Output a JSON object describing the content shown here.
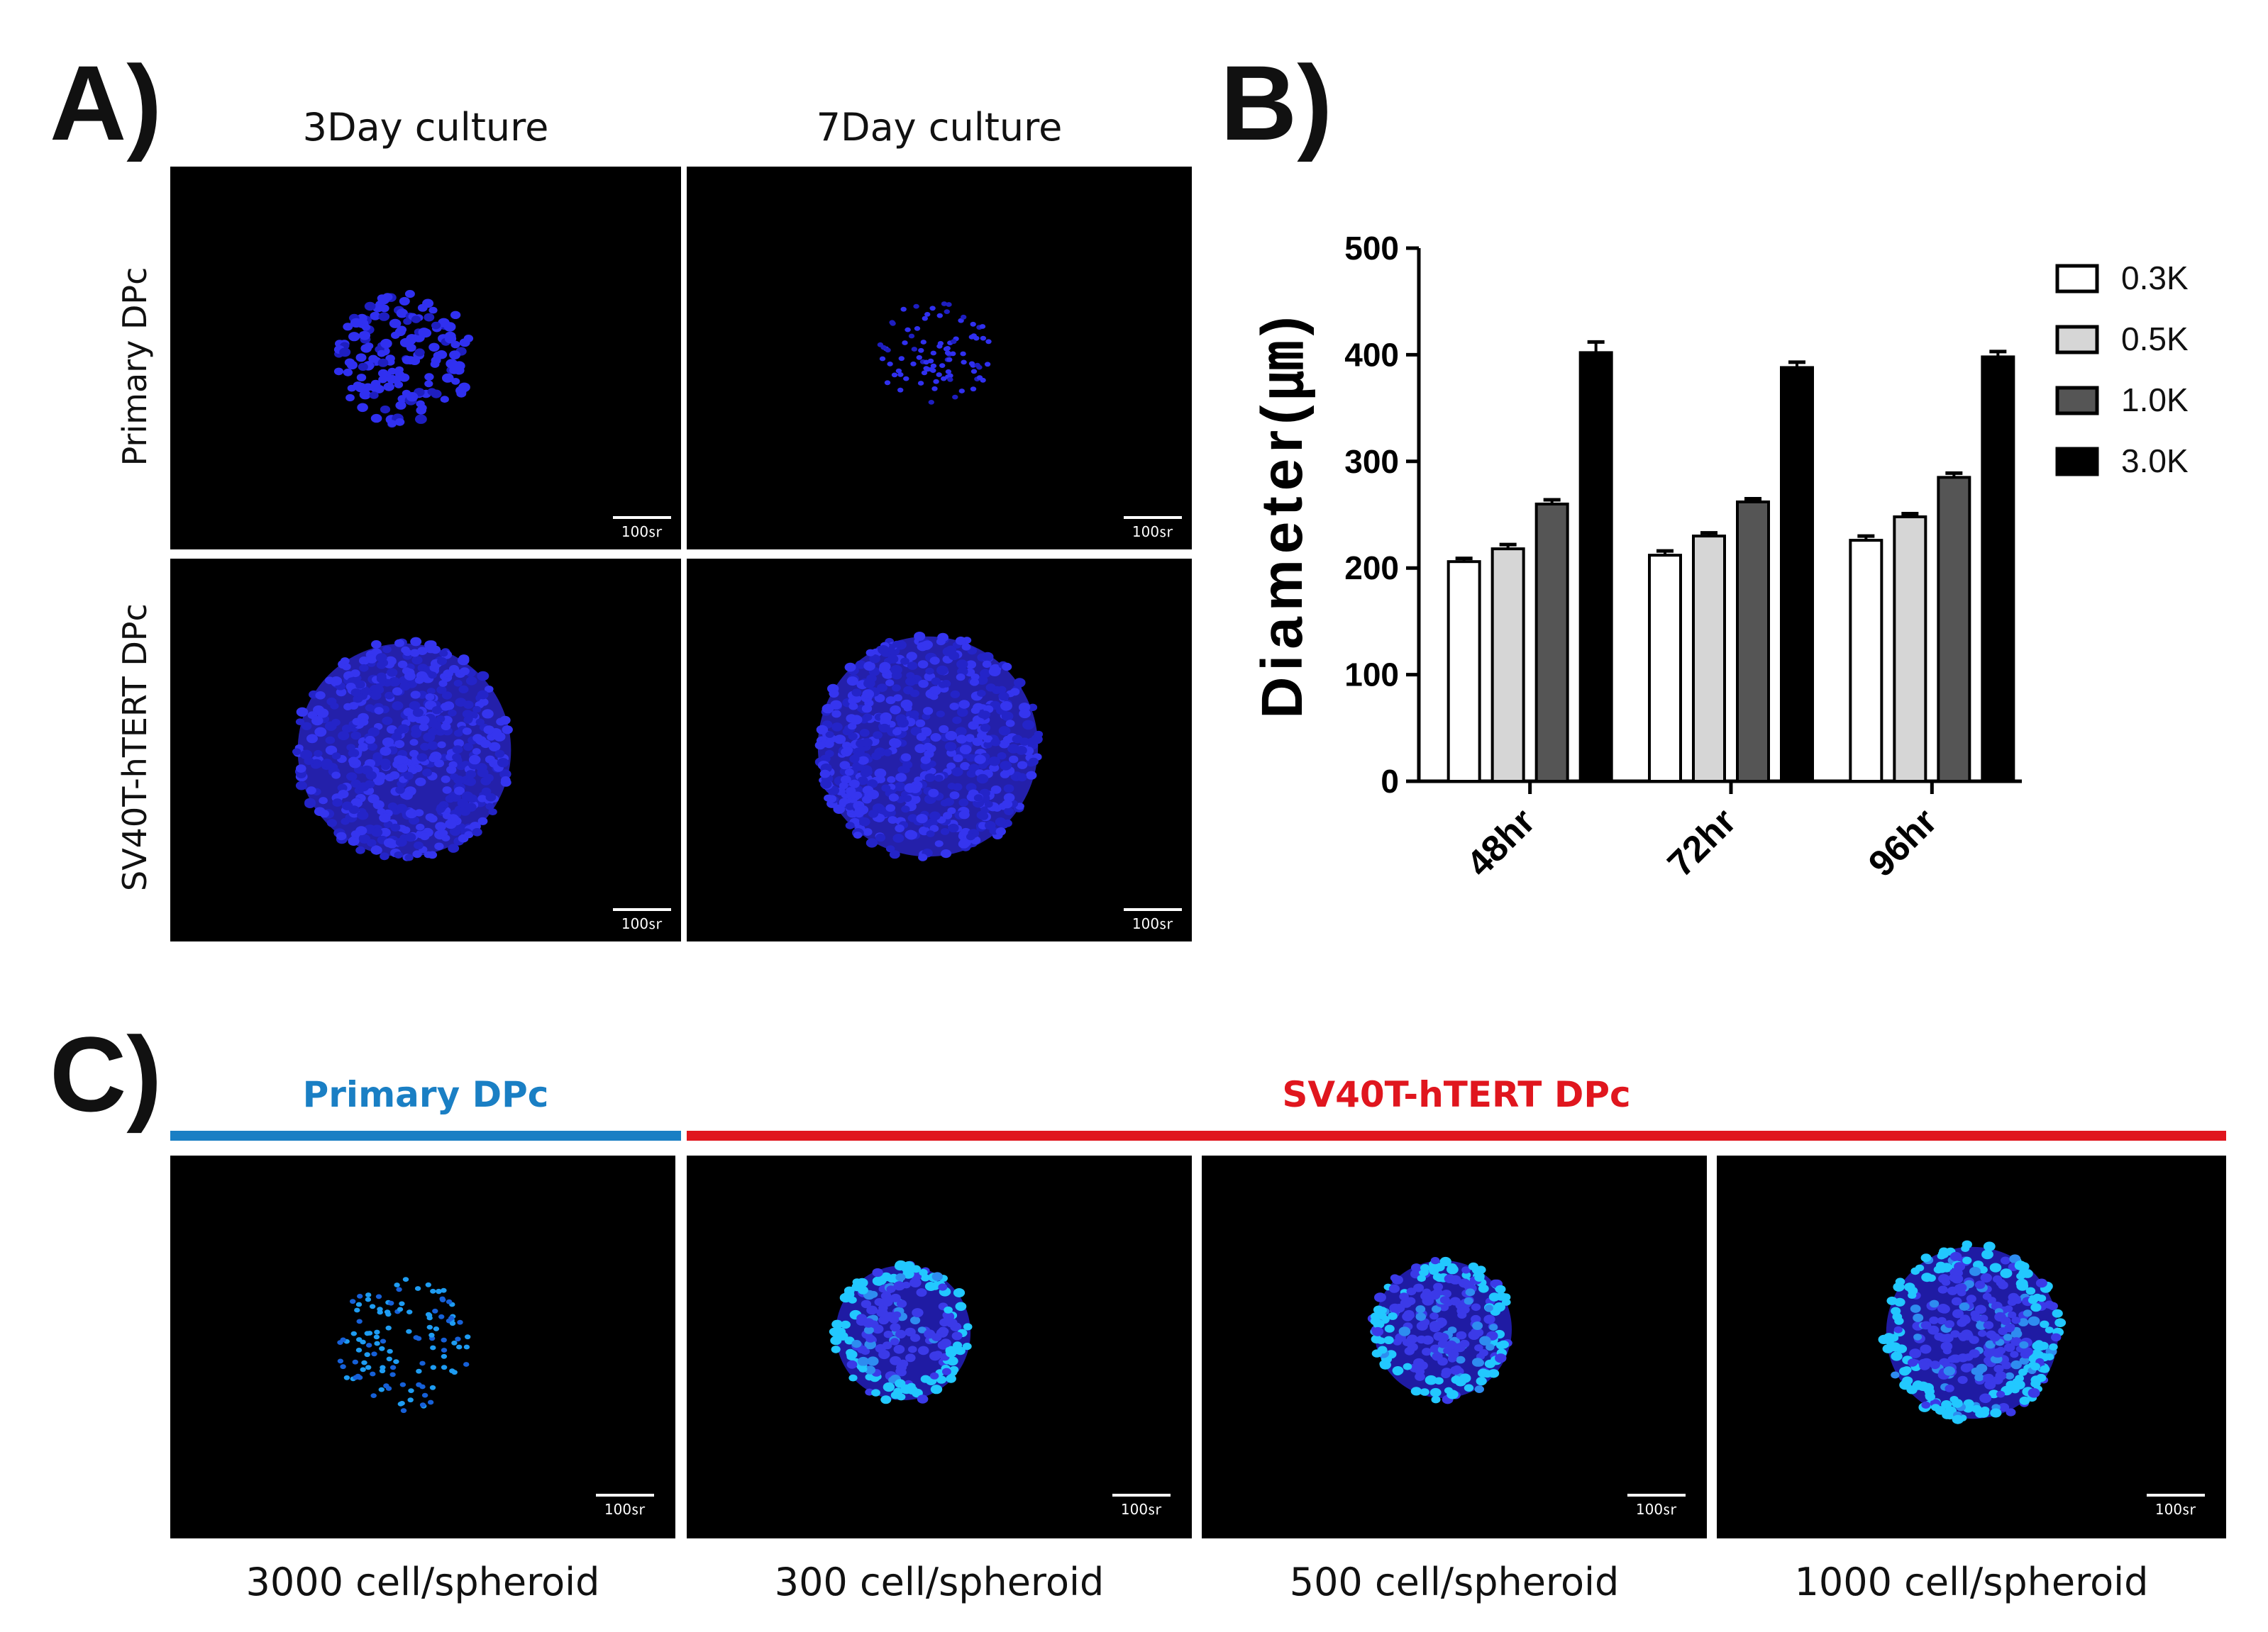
{
  "panels": {
    "a": "A)",
    "b": "B)",
    "c": "C)"
  },
  "panel_a": {
    "columns": [
      "3Day culture",
      "7Day culture"
    ],
    "rows": [
      "Primary DPc",
      "SV40T-hTERT DPc"
    ],
    "scale_label": "100㏛"
  },
  "panel_c": {
    "groups": [
      {
        "label": "Primary DPc",
        "color": "#1a7fc4"
      },
      {
        "label": "SV40T-hTERT DPc",
        "color": "#e0161e"
      }
    ],
    "captions": [
      "3000 cell/spheroid",
      "300 cell/spheroid",
      "500 cell/spheroid",
      "1000 cell/spheroid"
    ],
    "scale_label": "100㏛"
  },
  "colors": {
    "nuclei_dark": "#2a2be0",
    "nuclei_cyan": "#22c8ff"
  },
  "chart_data": {
    "type": "bar",
    "title": "",
    "xlabel": "",
    "ylabel": "Diameter(㎛)",
    "ylim": [
      0,
      500
    ],
    "yticks": [
      0,
      100,
      200,
      300,
      400,
      500
    ],
    "categories": [
      "48hr",
      "72hr",
      "96hr"
    ],
    "series": [
      {
        "name": "0.3K",
        "color": "#ffffff",
        "values": [
          206,
          212,
          226
        ],
        "errors": [
          3,
          4,
          4
        ]
      },
      {
        "name": "0.5K",
        "color": "#d6d6d6",
        "values": [
          218,
          230,
          248
        ],
        "errors": [
          4,
          3,
          3
        ]
      },
      {
        "name": "1.0K",
        "color": "#555555",
        "values": [
          260,
          262,
          285
        ],
        "errors": [
          4,
          3,
          4
        ]
      },
      {
        "name": "3.0K",
        "color": "#000000",
        "values": [
          402,
          388,
          398
        ],
        "errors": [
          10,
          5,
          5
        ]
      }
    ],
    "legend": "top-right"
  }
}
